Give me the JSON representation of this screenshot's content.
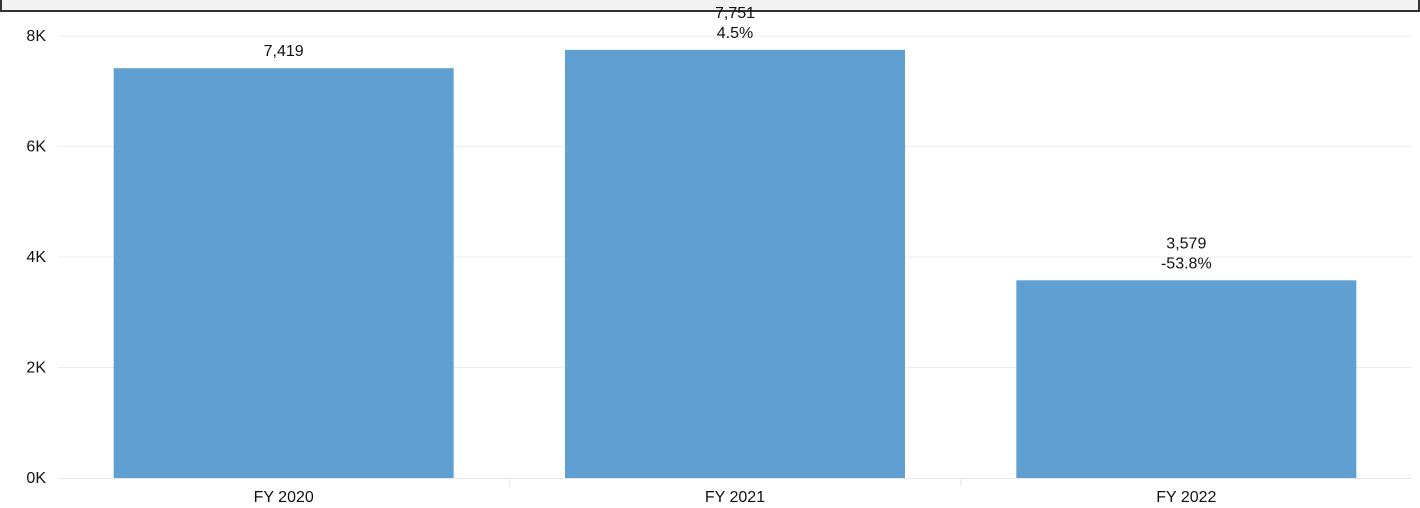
{
  "chart_data": {
    "type": "bar",
    "title": "",
    "xlabel": "",
    "ylabel": "",
    "categories": [
      "FY 2020",
      "FY 2021",
      "FY 2022"
    ],
    "values": [
      7419,
      7751,
      3579
    ],
    "value_labels": [
      "7,419",
      "7,751",
      "3,579"
    ],
    "change_labels": [
      "",
      "4.5%",
      "-53.8%"
    ],
    "ylim": [
      0,
      8400
    ],
    "yticks": [
      0,
      2000,
      4000,
      6000,
      8000
    ],
    "ytick_labels": [
      "0K",
      "2K",
      "4K",
      "6K",
      "8K"
    ],
    "grid": true,
    "legend": "none",
    "bar_color": "#5f9fd1",
    "grid_color": "#ececec",
    "text_color": "#111111"
  }
}
